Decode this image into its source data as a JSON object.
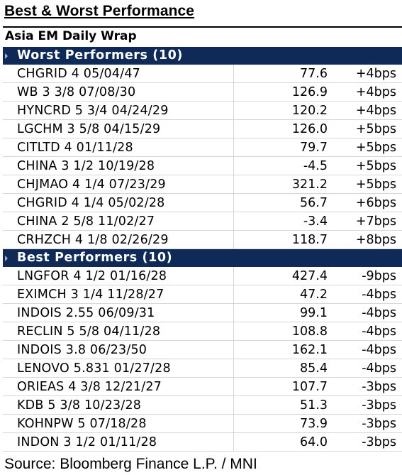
{
  "title": "Best & Worst Performance",
  "subtitle": "Asia EM Daily Wrap",
  "sections": [
    {
      "header": "Worst Performers (10)",
      "rows": [
        {
          "bond": "CHGRID 4 05/04/47",
          "price": "77.6",
          "change": "+4bps"
        },
        {
          "bond": "WB 3 3/8 07/08/30",
          "price": "126.9",
          "change": "+4bps"
        },
        {
          "bond": "HYNCRD 5 3/4 04/24/29",
          "price": "120.2",
          "change": "+4bps"
        },
        {
          "bond": "LGCHM 3 5/8 04/15/29",
          "price": "126.0",
          "change": "+5bps"
        },
        {
          "bond": "CITLTD 4 01/11/28",
          "price": "79.7",
          "change": "+5bps"
        },
        {
          "bond": "CHINA 3 1/2 10/19/28",
          "price": "-4.5",
          "change": "+5bps"
        },
        {
          "bond": "CHJMAO 4 1/4 07/23/29",
          "price": "321.2",
          "change": "+5bps"
        },
        {
          "bond": "CHGRID 4 1/4 05/02/28",
          "price": "56.7",
          "change": "+6bps"
        },
        {
          "bond": "CHINA 2 5/8 11/02/27",
          "price": "-3.4",
          "change": "+7bps"
        },
        {
          "bond": "CRHZCH 4 1/8 02/26/29",
          "price": "118.7",
          "change": "+8bps"
        }
      ]
    },
    {
      "header": "Best Performers (10)",
      "rows": [
        {
          "bond": "LNGFOR 4 1/2 01/16/28",
          "price": "427.4",
          "change": "-9bps"
        },
        {
          "bond": "EXIMCH 3 1/4 11/28/27",
          "price": "47.2",
          "change": "-4bps"
        },
        {
          "bond": "INDOIS 2.55 06/09/31",
          "price": "99.1",
          "change": "-4bps"
        },
        {
          "bond": "RECLIN 5 5/8 04/11/28",
          "price": "108.8",
          "change": "-4bps"
        },
        {
          "bond": "INDOIS 3.8 06/23/50",
          "price": "162.1",
          "change": "-4bps"
        },
        {
          "bond": "LENOVO 5.831 01/27/28",
          "price": "85.4",
          "change": "-4bps"
        },
        {
          "bond": "ORIEAS 4 3/8 12/21/27",
          "price": "107.7",
          "change": "-3bps"
        },
        {
          "bond": "KDB 5 3/8 10/23/28",
          "price": "51.3",
          "change": "-3bps"
        },
        {
          "bond": "KOHNPW 5 07/18/28",
          "price": "73.9",
          "change": "-3bps"
        },
        {
          "bond": "INDON 3 1/2 01/11/28",
          "price": "64.0",
          "change": "-3bps"
        }
      ]
    }
  ],
  "footer": "Source: Bloomberg Finance L.P. / MNI",
  "colors": {
    "header_bg": "#0f2a57",
    "header_text": "#ffffff",
    "grid_line": "#d6d6d6"
  }
}
